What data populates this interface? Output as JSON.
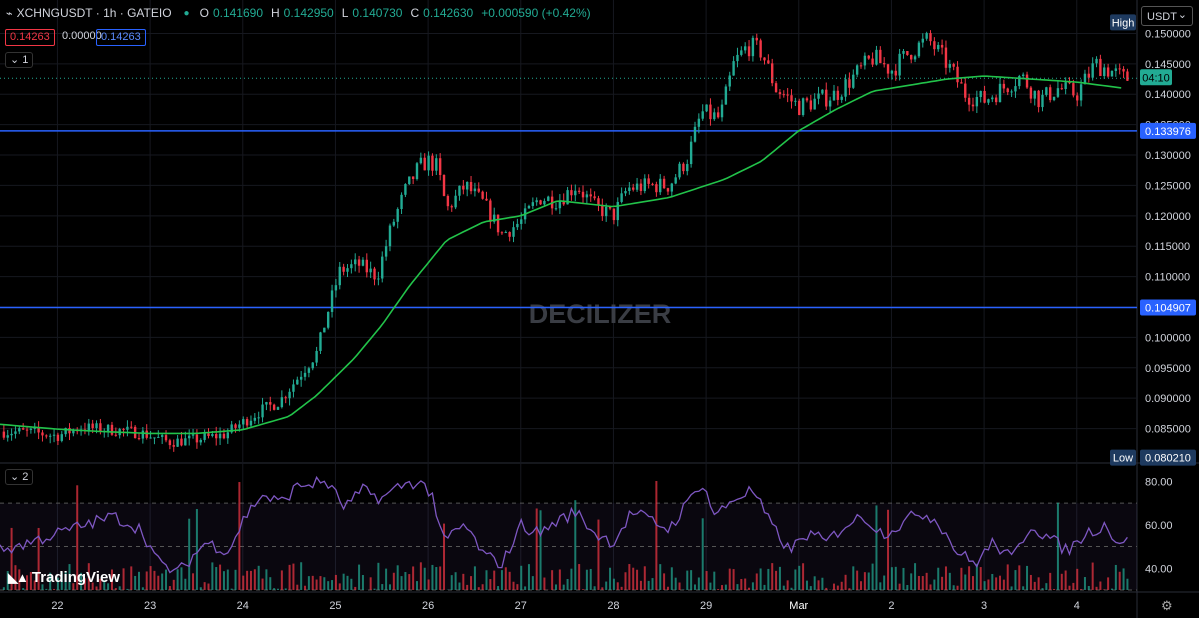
{
  "header": {
    "symbol_icon": "chart-logo-icon",
    "symbol": "XCHNGUSDT · 1h · GATEIO",
    "status_dot": "●",
    "o_label": "O",
    "o_value": "0.141690",
    "h_label": "H",
    "h_value": "0.142950",
    "l_label": "L",
    "l_value": "0.140730",
    "c_label": "C",
    "c_value": "0.142630",
    "change": "+0.000590 (+0.42%)",
    "badge_bid": "0.14263",
    "badge_spread": "0.00000",
    "badge_ask": "0.14263",
    "pane1_toggle": "1",
    "pane2_toggle": "2",
    "currency": "USDT"
  },
  "watermark": "DECILIZER",
  "branding": "TradingView",
  "colors": {
    "up": "#22ab94",
    "down": "#f23645",
    "ma": "#22c34a",
    "hline": "#2962ff",
    "rsi": "#7e57c2",
    "text": "#d1d4dc",
    "bg": "#000000"
  },
  "chart_data": [
    {
      "type": "candlestick",
      "title": "XCHNGUSDT · 1h · GATEIO",
      "ylim": [
        0.0795,
        0.1532
      ],
      "y_ticks": [
        "0.150000",
        "0.145000",
        "0.140000",
        "0.135000",
        "0.130000",
        "0.125000",
        "0.120000",
        "0.115000",
        "0.110000",
        "0.105000",
        "0.100000",
        "0.095000",
        "0.090000",
        "0.085000"
      ],
      "x_ticks": [
        "22",
        "23",
        "24",
        "25",
        "26",
        "27",
        "28",
        "29",
        "Mar",
        "2",
        "3",
        "4"
      ],
      "tick_anchors": [
        {
          "label": "22",
          "day": 0
        },
        {
          "label": "23",
          "day": 1
        },
        {
          "label": "24",
          "day": 2
        },
        {
          "label": "25",
          "day": 3
        },
        {
          "label": "26",
          "day": 4
        },
        {
          "label": "27",
          "day": 5
        },
        {
          "label": "28",
          "day": 6
        },
        {
          "label": "29",
          "day": 7
        },
        {
          "label": "Mar",
          "day": 8
        },
        {
          "label": "2",
          "day": 9
        },
        {
          "label": "3",
          "day": 10
        },
        {
          "label": "4",
          "day": 11
        }
      ],
      "x_range_days": [
        -0.62,
        11.65
      ],
      "last_price": 0.14263,
      "last_price_label": "04:10",
      "high_label": "High",
      "high_value": 0.15182,
      "low_label": "Low",
      "low_value": 0.08021,
      "low_value_label": "0.080210",
      "horizontal_lines": [
        {
          "value": 0.133976,
          "label": "0.133976"
        },
        {
          "value": 0.104907,
          "label": "0.104907"
        }
      ],
      "close_path": [
        {
          "d": -0.62,
          "v": 0.0845
        },
        {
          "d": -0.3,
          "v": 0.0844
        },
        {
          "d": 0.0,
          "v": 0.0838
        },
        {
          "d": 0.25,
          "v": 0.0852
        },
        {
          "d": 0.6,
          "v": 0.0848
        },
        {
          "d": 0.9,
          "v": 0.0843
        },
        {
          "d": 1.2,
          "v": 0.0828
        },
        {
          "d": 1.5,
          "v": 0.0832
        },
        {
          "d": 1.8,
          "v": 0.084
        },
        {
          "d": 2.0,
          "v": 0.086
        },
        {
          "d": 2.2,
          "v": 0.088
        },
        {
          "d": 2.4,
          "v": 0.0895
        },
        {
          "d": 2.6,
          "v": 0.0935
        },
        {
          "d": 2.8,
          "v": 0.0975
        },
        {
          "d": 2.95,
          "v": 0.106
        },
        {
          "d": 3.05,
          "v": 0.111
        },
        {
          "d": 3.25,
          "v": 0.112
        },
        {
          "d": 3.45,
          "v": 0.11
        },
        {
          "d": 3.6,
          "v": 0.118
        },
        {
          "d": 3.75,
          "v": 0.124
        },
        {
          "d": 3.9,
          "v": 0.128
        },
        {
          "d": 4.0,
          "v": 0.129
        },
        {
          "d": 4.1,
          "v": 0.128
        },
        {
          "d": 4.2,
          "v": 0.121
        },
        {
          "d": 4.4,
          "v": 0.125
        },
        {
          "d": 4.6,
          "v": 0.122
        },
        {
          "d": 4.8,
          "v": 0.117
        },
        {
          "d": 5.0,
          "v": 0.119
        },
        {
          "d": 5.2,
          "v": 0.123
        },
        {
          "d": 5.4,
          "v": 0.1225
        },
        {
          "d": 5.6,
          "v": 0.125
        },
        {
          "d": 5.8,
          "v": 0.1215
        },
        {
          "d": 6.0,
          "v": 0.12
        },
        {
          "d": 6.15,
          "v": 0.1245
        },
        {
          "d": 6.4,
          "v": 0.125
        },
        {
          "d": 6.6,
          "v": 0.125
        },
        {
          "d": 6.8,
          "v": 0.1295
        },
        {
          "d": 6.95,
          "v": 0.137
        },
        {
          "d": 7.15,
          "v": 0.136
        },
        {
          "d": 7.3,
          "v": 0.145
        },
        {
          "d": 7.45,
          "v": 0.148
        },
        {
          "d": 7.6,
          "v": 0.147
        },
        {
          "d": 7.75,
          "v": 0.141
        },
        {
          "d": 8.0,
          "v": 0.138
        },
        {
          "d": 8.2,
          "v": 0.139
        },
        {
          "d": 8.4,
          "v": 0.14
        },
        {
          "d": 8.6,
          "v": 0.143
        },
        {
          "d": 8.8,
          "v": 0.146
        },
        {
          "d": 9.0,
          "v": 0.144
        },
        {
          "d": 9.2,
          "v": 0.147
        },
        {
          "d": 9.4,
          "v": 0.149
        },
        {
          "d": 9.6,
          "v": 0.145
        },
        {
          "d": 9.8,
          "v": 0.14
        },
        {
          "d": 10.0,
          "v": 0.139
        },
        {
          "d": 10.2,
          "v": 0.141
        },
        {
          "d": 10.4,
          "v": 0.143
        },
        {
          "d": 10.6,
          "v": 0.139
        },
        {
          "d": 10.8,
          "v": 0.141
        },
        {
          "d": 11.0,
          "v": 0.14
        },
        {
          "d": 11.2,
          "v": 0.145
        },
        {
          "d": 11.35,
          "v": 0.144
        },
        {
          "d": 11.5,
          "v": 0.14263
        }
      ],
      "ma_path": [
        {
          "d": -0.62,
          "v": 0.0857
        },
        {
          "d": 0.0,
          "v": 0.0849
        },
        {
          "d": 0.5,
          "v": 0.0845
        },
        {
          "d": 1.0,
          "v": 0.0842
        },
        {
          "d": 1.5,
          "v": 0.0842
        },
        {
          "d": 2.0,
          "v": 0.0848
        },
        {
          "d": 2.5,
          "v": 0.087
        },
        {
          "d": 2.8,
          "v": 0.0905
        },
        {
          "d": 3.2,
          "v": 0.0965
        },
        {
          "d": 3.5,
          "v": 0.102
        },
        {
          "d": 3.8,
          "v": 0.1085
        },
        {
          "d": 4.2,
          "v": 0.116
        },
        {
          "d": 4.6,
          "v": 0.119
        },
        {
          "d": 5.0,
          "v": 0.12
        },
        {
          "d": 5.4,
          "v": 0.1225
        },
        {
          "d": 6.0,
          "v": 0.1215
        },
        {
          "d": 6.6,
          "v": 0.123
        },
        {
          "d": 7.2,
          "v": 0.126
        },
        {
          "d": 7.6,
          "v": 0.129
        },
        {
          "d": 8.0,
          "v": 0.134
        },
        {
          "d": 8.4,
          "v": 0.1375
        },
        {
          "d": 8.8,
          "v": 0.1405
        },
        {
          "d": 9.2,
          "v": 0.1415
        },
        {
          "d": 9.6,
          "v": 0.1425
        },
        {
          "d": 10.0,
          "v": 0.143
        },
        {
          "d": 10.5,
          "v": 0.1425
        },
        {
          "d": 11.0,
          "v": 0.142
        },
        {
          "d": 11.5,
          "v": 0.141
        }
      ]
    },
    {
      "type": "line",
      "title": "",
      "ylim": [
        30,
        88
      ],
      "y_ticks": [
        "80.00",
        "60.00",
        "40.00"
      ],
      "levels": [
        70,
        50,
        30
      ],
      "rsi_path": [
        {
          "d": -0.62,
          "v": 48
        },
        {
          "d": -0.3,
          "v": 52
        },
        {
          "d": 0.0,
          "v": 56
        },
        {
          "d": 0.3,
          "v": 60
        },
        {
          "d": 0.6,
          "v": 64
        },
        {
          "d": 0.9,
          "v": 58
        },
        {
          "d": 1.1,
          "v": 42
        },
        {
          "d": 1.3,
          "v": 38
        },
        {
          "d": 1.6,
          "v": 52
        },
        {
          "d": 1.85,
          "v": 48
        },
        {
          "d": 2.0,
          "v": 62
        },
        {
          "d": 2.2,
          "v": 74
        },
        {
          "d": 2.4,
          "v": 70
        },
        {
          "d": 2.6,
          "v": 78
        },
        {
          "d": 2.9,
          "v": 80
        },
        {
          "d": 3.1,
          "v": 68
        },
        {
          "d": 3.3,
          "v": 76
        },
        {
          "d": 3.5,
          "v": 72
        },
        {
          "d": 3.7,
          "v": 78
        },
        {
          "d": 3.9,
          "v": 80
        },
        {
          "d": 4.05,
          "v": 74
        },
        {
          "d": 4.15,
          "v": 52
        },
        {
          "d": 4.4,
          "v": 60
        },
        {
          "d": 4.6,
          "v": 46
        },
        {
          "d": 4.8,
          "v": 42
        },
        {
          "d": 5.0,
          "v": 60
        },
        {
          "d": 5.2,
          "v": 56
        },
        {
          "d": 5.4,
          "v": 62
        },
        {
          "d": 5.6,
          "v": 66
        },
        {
          "d": 5.8,
          "v": 56
        },
        {
          "d": 6.0,
          "v": 52
        },
        {
          "d": 6.2,
          "v": 66
        },
        {
          "d": 6.4,
          "v": 62
        },
        {
          "d": 6.6,
          "v": 58
        },
        {
          "d": 6.8,
          "v": 70
        },
        {
          "d": 6.95,
          "v": 80
        },
        {
          "d": 7.1,
          "v": 64
        },
        {
          "d": 7.3,
          "v": 72
        },
        {
          "d": 7.5,
          "v": 76
        },
        {
          "d": 7.7,
          "v": 60
        },
        {
          "d": 7.9,
          "v": 48
        },
        {
          "d": 8.1,
          "v": 56
        },
        {
          "d": 8.3,
          "v": 52
        },
        {
          "d": 8.5,
          "v": 60
        },
        {
          "d": 8.7,
          "v": 64
        },
        {
          "d": 8.9,
          "v": 56
        },
        {
          "d": 9.1,
          "v": 60
        },
        {
          "d": 9.3,
          "v": 66
        },
        {
          "d": 9.5,
          "v": 62
        },
        {
          "d": 9.7,
          "v": 48
        },
        {
          "d": 9.9,
          "v": 42
        },
        {
          "d": 10.1,
          "v": 52
        },
        {
          "d": 10.3,
          "v": 44
        },
        {
          "d": 10.5,
          "v": 60
        },
        {
          "d": 10.7,
          "v": 54
        },
        {
          "d": 10.9,
          "v": 48
        },
        {
          "d": 11.1,
          "v": 56
        },
        {
          "d": 11.3,
          "v": 60
        },
        {
          "d": 11.45,
          "v": 52
        },
        {
          "d": 11.55,
          "v": 54
        }
      ]
    }
  ]
}
